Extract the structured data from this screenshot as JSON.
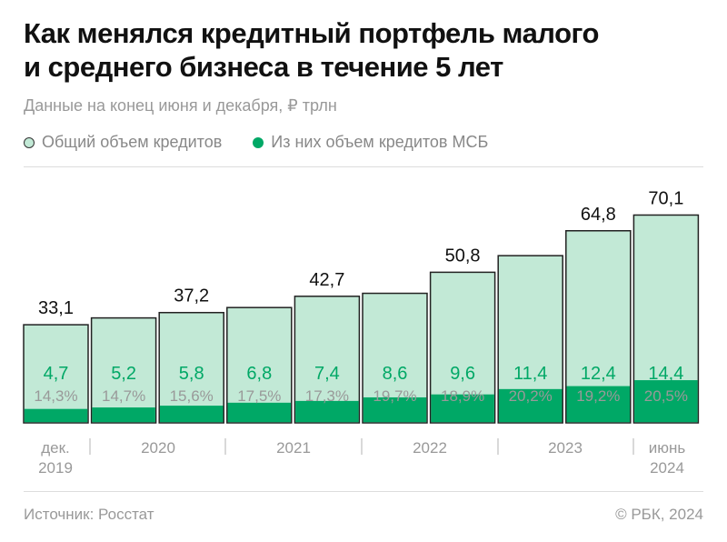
{
  "title_line1": "Как менялся кредитный портфель малого",
  "title_line2": "и среднего бизнеса в течение 5 лет",
  "subtitle": "Данные на конец июня и декабря, ₽ трлн",
  "legend": [
    {
      "label": "Общий объем кредитов",
      "color": "#c2e9d6"
    },
    {
      "label": "Из них объем кредитов МСБ",
      "color": "#00a866"
    }
  ],
  "source": "Источник: Росстат",
  "copyright": "© РБК, 2024",
  "chart_data": {
    "type": "bar",
    "stacked_overlay": true,
    "categories": [
      "дек. 2019",
      "июн. 2020",
      "дек. 2020",
      "июн. 2021",
      "дек. 2021",
      "июн. 2022",
      "дек. 2022",
      "июн. 2023",
      "дек. 2023",
      "июнь 2024"
    ],
    "x_tick_labels": [
      {
        "text": [
          "дек.",
          "2019"
        ]
      },
      {
        "text": [
          "2020"
        ]
      },
      {
        "text": [
          "2021"
        ]
      },
      {
        "text": [
          "2022"
        ]
      },
      {
        "text": [
          "2023"
        ]
      },
      {
        "text": [
          "июнь",
          "2024"
        ]
      }
    ],
    "series": [
      {
        "name": "Общий объем кредитов",
        "color": "#c2e9d6",
        "values": [
          33.1,
          35.4,
          37.2,
          38.9,
          42.7,
          43.7,
          50.8,
          56.4,
          64.8,
          70.1
        ],
        "labels": [
          "33,1",
          null,
          "37,2",
          null,
          "42,7",
          null,
          "50,8",
          null,
          "64,8",
          "70,1"
        ]
      },
      {
        "name": "Из них объем кредитов МСБ",
        "color": "#00a866",
        "values": [
          4.7,
          5.2,
          5.8,
          6.8,
          7.4,
          8.6,
          9.6,
          11.4,
          12.4,
          14.4
        ],
        "labels": [
          "4,7",
          "5,2",
          "5,8",
          "6,8",
          "7,4",
          "8,6",
          "9,6",
          "11,4",
          "12,4",
          "14,4"
        ]
      }
    ],
    "share_labels": [
      "14,3%",
      "14,7%",
      "15,6%",
      "17,5%",
      "17,3%",
      "19,7%",
      "18,9%",
      "20,2%",
      "19,2%",
      "20,5%"
    ],
    "ylim": [
      0,
      72
    ],
    "grid": false,
    "legend_position": "top-left"
  }
}
